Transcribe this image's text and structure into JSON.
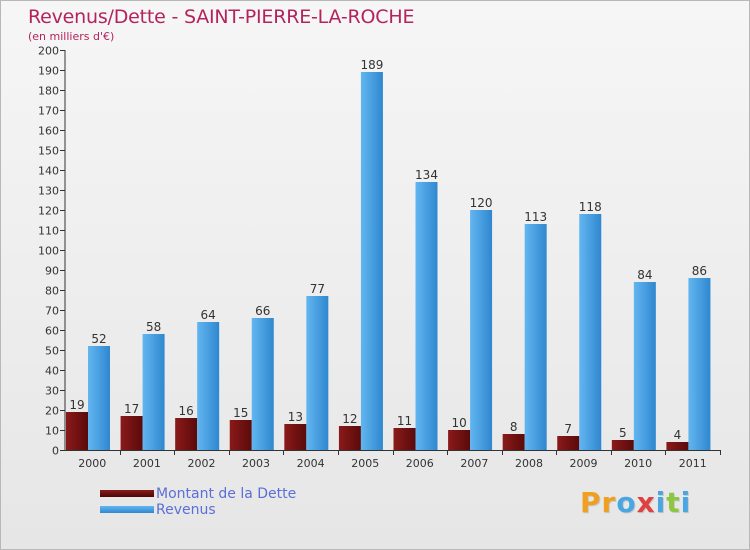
{
  "header": {
    "title": "Revenus/Dette - SAINT-PIERRE-LA-ROCHE",
    "unit": "(en milliers d'€)"
  },
  "legend": {
    "debt_label": "Montant de la Dette",
    "revenue_label": "Revenus"
  },
  "logo": {
    "text": "Proxiti",
    "letters": [
      {
        "ch": "P",
        "color": "#f0a020"
      },
      {
        "ch": "r",
        "color": "#f0a020"
      },
      {
        "ch": "o",
        "color": "#4aa6e0"
      },
      {
        "ch": "x",
        "color": "#e04040"
      },
      {
        "ch": "i",
        "color": "#4aa6e0"
      },
      {
        "ch": "t",
        "color": "#8dc63f"
      },
      {
        "ch": "i",
        "color": "#4aa6e0"
      }
    ]
  },
  "colors": {
    "debt_top": "#8b1a1a",
    "debt_bottom": "#5a0a0a",
    "revenue_top": "#5fb3ee",
    "revenue_bottom": "#2f87cf",
    "title": "#b5235b",
    "legend_text": "#5b6fd6"
  },
  "chart_data": {
    "type": "bar",
    "title": "Revenus/Dette - SAINT-PIERRE-LA-ROCHE",
    "ylabel": "(en milliers d'€)",
    "xlabel": "",
    "ylim": [
      0,
      200
    ],
    "ytick_step": 10,
    "grid": false,
    "legend_position": "bottom-left",
    "categories": [
      "2000",
      "2001",
      "2002",
      "2003",
      "2004",
      "2005",
      "2006",
      "2007",
      "2008",
      "2009",
      "2010",
      "2011"
    ],
    "series": [
      {
        "name": "Montant de la Dette",
        "values": [
          19,
          17,
          16,
          15,
          13,
          12,
          11,
          10,
          8,
          7,
          5,
          4
        ]
      },
      {
        "name": "Revenus",
        "values": [
          52,
          58,
          64,
          66,
          77,
          189,
          134,
          120,
          113,
          118,
          84,
          86
        ]
      }
    ]
  }
}
